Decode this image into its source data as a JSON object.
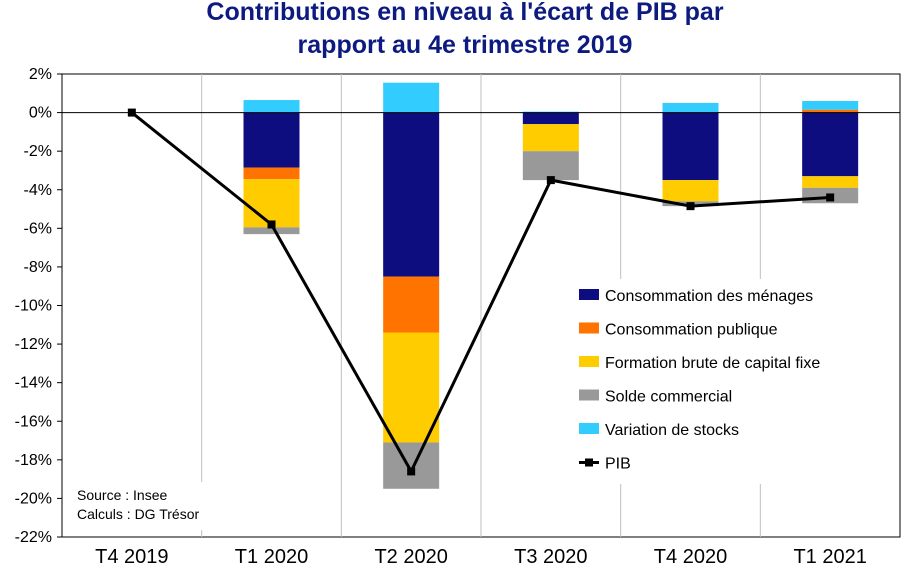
{
  "chart_data": {
    "type": "bar",
    "stacked": true,
    "title_lines": [
      "Contributions en niveau à l'écart de PIB par",
      "rapport au 4e trimestre 2019"
    ],
    "categories": [
      "T4 2019",
      "T1 2020",
      "T2 2020",
      "T3 2020",
      "T4 2020",
      "T1 2021"
    ],
    "ylim": [
      -22,
      2
    ],
    "yticks": [
      2,
      0,
      -2,
      -4,
      -6,
      -8,
      -10,
      -12,
      -14,
      -16,
      -18,
      -20,
      -22
    ],
    "ytick_labels": [
      "2%",
      "0%",
      "-2%",
      "-4%",
      "-6%",
      "-8%",
      "-10%",
      "-12%",
      "-14%",
      "-16%",
      "-18%",
      "-20%",
      "-22%"
    ],
    "grid": "vertical",
    "legend_position": "bottom-right",
    "series": [
      {
        "name": "Consommation des ménages",
        "color": "#0d0d80",
        "values": [
          0,
          -2.85,
          -8.5,
          -0.6,
          -3.5,
          -3.3
        ]
      },
      {
        "name": "Consommation publique",
        "color": "#ff7300",
        "values": [
          0,
          -0.6,
          -2.9,
          0,
          0,
          0.15
        ]
      },
      {
        "name": "Formation brute de capital fixe",
        "color": "#ffcc00",
        "values": [
          0,
          -2.5,
          -5.7,
          -1.4,
          -1.1,
          -0.6
        ]
      },
      {
        "name": "Solde commercial",
        "color": "#999999",
        "values": [
          0,
          -0.35,
          -2.4,
          -1.5,
          -0.25,
          -0.8
        ]
      },
      {
        "name": "Variation de stocks",
        "color": "#33ccff",
        "values": [
          0,
          0.65,
          1.55,
          0.05,
          0.5,
          0.45
        ]
      }
    ],
    "line_series": {
      "name": "PIB",
      "color": "#000000",
      "values": [
        0,
        -5.8,
        -18.6,
        -3.5,
        -4.85,
        -4.4
      ]
    },
    "notes": [
      "Source : Insee",
      "Calculs : DG Trésor"
    ]
  }
}
